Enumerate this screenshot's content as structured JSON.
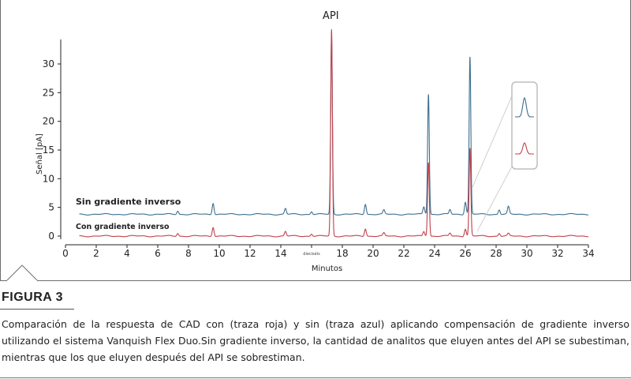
{
  "chart_data": {
    "type": "line",
    "title": "API",
    "xlabel": "Minutos",
    "ylabel": "Señal [pA]",
    "xlim": [
      0,
      34
    ],
    "ylim": [
      -1,
      35
    ],
    "x_ticks": [
      0,
      2,
      4,
      6,
      8,
      10,
      12,
      14,
      16,
      18,
      20,
      22,
      24,
      26,
      28,
      30,
      32,
      34
    ],
    "y_ticks": [
      0,
      5,
      10,
      15,
      20,
      25,
      30
    ],
    "x_stray_label": "dieciséis",
    "grid": false,
    "series": [
      {
        "name": "Sin gradiente inverso",
        "color": "#3e6e8c",
        "baseline": 3.8,
        "peaks": [
          {
            "x": 7.3,
            "height": 0.6
          },
          {
            "x": 9.6,
            "height": 2.0
          },
          {
            "x": 14.3,
            "height": 1.0
          },
          {
            "x": 16.0,
            "height": 0.5
          },
          {
            "x": 17.3,
            "height": 31.0
          },
          {
            "x": 19.5,
            "height": 1.8
          },
          {
            "x": 20.7,
            "height": 0.7
          },
          {
            "x": 23.3,
            "height": 1.3
          },
          {
            "x": 23.6,
            "height": 21.0
          },
          {
            "x": 25.0,
            "height": 0.8
          },
          {
            "x": 26.0,
            "height": 2.2
          },
          {
            "x": 26.3,
            "height": 27.4
          },
          {
            "x": 28.2,
            "height": 0.8
          },
          {
            "x": 28.8,
            "height": 1.3
          }
        ]
      },
      {
        "name": "Con gradiente inverso",
        "color": "#c0404a",
        "baseline": 0.0,
        "peaks": [
          {
            "x": 7.3,
            "height": 0.5
          },
          {
            "x": 9.6,
            "height": 1.6
          },
          {
            "x": 14.3,
            "height": 0.8
          },
          {
            "x": 16.0,
            "height": 0.4
          },
          {
            "x": 17.3,
            "height": 36.0
          },
          {
            "x": 19.5,
            "height": 1.3
          },
          {
            "x": 20.7,
            "height": 0.5
          },
          {
            "x": 23.3,
            "height": 0.8
          },
          {
            "x": 23.6,
            "height": 12.9
          },
          {
            "x": 25.0,
            "height": 0.5
          },
          {
            "x": 26.0,
            "height": 1.3
          },
          {
            "x": 26.3,
            "height": 15.3
          },
          {
            "x": 28.2,
            "height": 0.5
          },
          {
            "x": 28.8,
            "height": 0.4
          }
        ]
      }
    ]
  },
  "figure": {
    "label": "FIGURA 3",
    "caption": "Comparación de la respuesta de CAD con (traza roja) y sin (traza azul) aplicando compensación de gradiente inverso utilizando el sistema Vanquish Flex Duo.Sin gradiente inverso, la cantidad de analitos que eluyen antes del API se subestiman, mientras que los que eluyen después del API se sobrestiman."
  }
}
